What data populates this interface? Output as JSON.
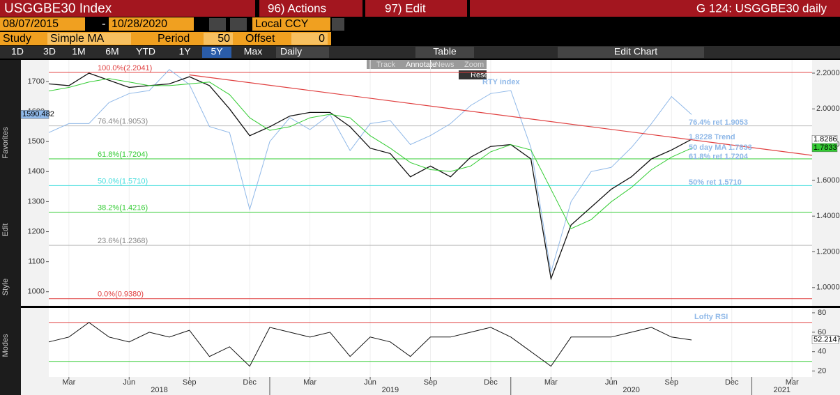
{
  "toolbar": {
    "title": "USGGBE30 Index",
    "actions": "96) Actions",
    "edit": "97) Edit",
    "chart_name": "G 124: USGGBE30 daily",
    "start_date": "08/07/2015",
    "dash": "-",
    "end_date": "10/28/2020",
    "currency": "Local CCY",
    "study_label": "Study",
    "study": "Simple MA",
    "period_label": "Period",
    "period": "50",
    "offset_label": "Offset",
    "offset": "0",
    "ranges": [
      "1D",
      "3D",
      "1M",
      "6M",
      "YTD",
      "1Y",
      "5Y",
      "Max"
    ],
    "active_range": "5Y",
    "frequency": "Daily",
    "table": "Table",
    "edit_chart": "Edit Chart",
    "mini_tools": [
      "Track",
      "Annotate",
      "News",
      "Zoom"
    ],
    "reset": "Reset",
    "side_labels": [
      "Favorites",
      "Edit",
      "Style",
      "Modes"
    ]
  },
  "chart_data": [
    {
      "type": "line",
      "x": [
        "2018-02",
        "2018-03",
        "2018-04",
        "2018-05",
        "2018-06",
        "2018-07",
        "2018-08",
        "2018-09",
        "2018-10",
        "2018-11",
        "2018-12",
        "2019-01",
        "2019-02",
        "2019-03",
        "2019-04",
        "2019-05",
        "2019-06",
        "2019-07",
        "2019-08",
        "2019-09",
        "2019-10",
        "2019-11",
        "2019-12",
        "2020-01",
        "2020-02",
        "2020-03",
        "2020-04",
        "2020-05",
        "2020-06",
        "2020-07",
        "2020-08",
        "2020-09",
        "2020-10"
      ],
      "xlim": [
        "2018-02",
        "2021-04"
      ],
      "ylim": [
        953,
        1772
      ],
      "yticks": [
        1000,
        1100,
        1200,
        1300,
        1400,
        1500,
        1600,
        1700
      ],
      "y2lim": [
        0.898,
        2.274
      ],
      "y2ticks": [
        {
          "value": 1.0,
          "label": "1.0000"
        },
        {
          "value": 1.2,
          "label": "1.2000"
        },
        {
          "value": 1.4,
          "label": "1.4000"
        },
        {
          "value": 1.6,
          "label": "1.6000"
        },
        {
          "value": 1.8,
          "label": "1.8000"
        },
        {
          "value": 2.0,
          "label": "2.0000"
        },
        {
          "value": 2.2,
          "label": "2.2000"
        }
      ],
      "series": [
        {
          "name": "RTY index",
          "color": "#8fb8e8",
          "axis": "y",
          "values": [
            1530,
            1560,
            1560,
            1630,
            1660,
            1670,
            1740,
            1690,
            1550,
            1530,
            1274,
            1500,
            1580,
            1540,
            1590,
            1470,
            1560,
            1570,
            1490,
            1520,
            1560,
            1620,
            1660,
            1670,
            1480,
            1065,
            1300,
            1400,
            1414,
            1480,
            1560,
            1650,
            1590
          ]
        },
        {
          "color": "#111111",
          "axis": "y2",
          "values": [
            2.14,
            2.13,
            2.2,
            2.16,
            2.12,
            2.13,
            2.14,
            2.18,
            2.13,
            2.0,
            1.85,
            1.9,
            1.96,
            1.98,
            1.98,
            1.9,
            1.78,
            1.75,
            1.62,
            1.68,
            1.62,
            1.73,
            1.79,
            1.8,
            1.72,
            1.05,
            1.35,
            1.45,
            1.55,
            1.62,
            1.72,
            1.77,
            1.83
          ]
        },
        {
          "color": "#33cc33",
          "axis": "y2",
          "values": [
            2.1,
            2.12,
            2.15,
            2.17,
            2.15,
            2.13,
            2.13,
            2.14,
            2.15,
            2.08,
            1.95,
            1.88,
            1.9,
            1.95,
            1.97,
            1.95,
            1.85,
            1.78,
            1.7,
            1.66,
            1.65,
            1.68,
            1.76,
            1.8,
            1.77,
            1.55,
            1.33,
            1.38,
            1.48,
            1.56,
            1.66,
            1.73,
            1.78
          ]
        }
      ],
      "trend_line": {
        "x": [
          "2018-09",
          "2021-04"
        ],
        "values": [
          2.19,
          1.74
        ],
        "color": "#e04040"
      },
      "levels": [
        {
          "value": 2.2041,
          "label": "100.0%(2.2041)",
          "color": "#e04040"
        },
        {
          "value": 1.9053,
          "label": "76.4%(1.9053)",
          "color": "#bbbbbb"
        },
        {
          "value": 1.7204,
          "label": "61.8%(1.7204)",
          "color": "#33cc33"
        },
        {
          "value": 1.571,
          "label": "50.0%(1.5710)",
          "color": "#44dddd"
        },
        {
          "value": 1.4216,
          "label": "38.2%(1.4216)",
          "color": "#33cc33"
        },
        {
          "value": 1.2368,
          "label": "23.6%(1.2368)",
          "color": "#bbbbbb"
        },
        {
          "value": 0.938,
          "label": "0.0%(0.9380)",
          "color": "#e04040"
        }
      ],
      "annotations": [
        "76.4% ret 1.9053",
        "1.8228 Trend",
        "50 day MA 1.7833",
        "61.8% ret 1.7204",
        "50% ret 1.5710"
      ],
      "tags": [
        {
          "value": 1590.482,
          "axis": "y",
          "color": "#8fb8e8"
        },
        {
          "value": 1.8286,
          "axis": "y2",
          "color": "#ffffff"
        },
        {
          "value": 1.7833,
          "axis": "y2",
          "color": "#33cc33"
        }
      ]
    },
    {
      "type": "line",
      "title": "Lofty RSI",
      "x": [
        "2018-02",
        "2018-03",
        "2018-04",
        "2018-05",
        "2018-06",
        "2018-07",
        "2018-08",
        "2018-09",
        "2018-10",
        "2018-11",
        "2018-12",
        "2019-01",
        "2019-02",
        "2019-03",
        "2019-04",
        "2019-05",
        "2019-06",
        "2019-07",
        "2019-08",
        "2019-09",
        "2019-10",
        "2019-11",
        "2019-12",
        "2020-01",
        "2020-02",
        "2020-03",
        "2020-04",
        "2020-05",
        "2020-06",
        "2020-07",
        "2020-08",
        "2020-09",
        "2020-10"
      ],
      "xlim": [
        "2018-02",
        "2021-04"
      ],
      "xticks": [
        {
          "value": "2018-03",
          "label": "Mar"
        },
        {
          "value": "2018-06",
          "label": "Jun"
        },
        {
          "value": "2018-09",
          "label": "Sep"
        },
        {
          "value": "2018-12",
          "label": "Dec"
        },
        {
          "value": "2019-03",
          "label": "Mar"
        },
        {
          "value": "2019-06",
          "label": "Jun"
        },
        {
          "value": "2019-09",
          "label": "Sep"
        },
        {
          "value": "2019-12",
          "label": "Dec"
        },
        {
          "value": "2020-03",
          "label": "Mar"
        },
        {
          "value": "2020-06",
          "label": "Jun"
        },
        {
          "value": "2020-09",
          "label": "Sep"
        },
        {
          "value": "2020-12",
          "label": "Dec"
        },
        {
          "value": "2021-03",
          "label": "Mar"
        }
      ],
      "years": [
        "2018",
        "2019",
        "2020",
        "2021"
      ],
      "ylim": [
        14,
        85
      ],
      "yticks": [
        20,
        40,
        60,
        80
      ],
      "bands": [
        {
          "value": 70,
          "color": "#e04040"
        },
        {
          "value": 30,
          "color": "#33cc33"
        }
      ],
      "series": [
        {
          "color": "#111111",
          "values": [
            50,
            55,
            70,
            55,
            50,
            60,
            55,
            62,
            35,
            45,
            25,
            65,
            60,
            55,
            60,
            35,
            55,
            50,
            35,
            55,
            55,
            60,
            65,
            55,
            40,
            25,
            55,
            55,
            55,
            60,
            65,
            55,
            52
          ]
        }
      ],
      "tags": [
        {
          "value": 52.2147,
          "color": "#ffffff"
        }
      ]
    }
  ]
}
